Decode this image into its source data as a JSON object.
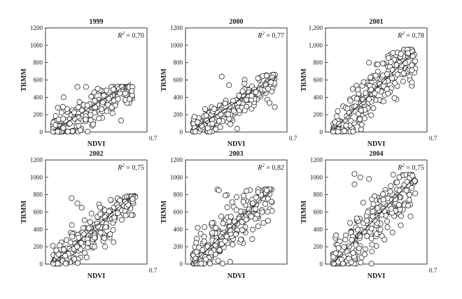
{
  "chart_data": [
    {
      "type": "scatter",
      "title": "1999",
      "xlabel": "NDVI",
      "ylabel": "TRMM",
      "r2_label": "= 0,70",
      "r2_prefix": "R",
      "r2_sup": "2",
      "xlim": [
        0,
        0.7
      ],
      "ylim": [
        0,
        1200
      ],
      "x_tick_labels": [
        "0.7"
      ],
      "y_ticks": [
        0,
        200,
        400,
        600,
        800,
        1000,
        1200
      ],
      "y_tick_labels": [
        "0",
        "200",
        "400",
        "600",
        "800",
        "1000",
        "1200"
      ],
      "grid": false,
      "fit_line": [
        [
          0.05,
          10
        ],
        [
          0.59,
          575
        ]
      ],
      "cloud": {
        "x_min": 0.05,
        "x_max": 0.6,
        "slope": 950,
        "intercept": -30,
        "spread": 95,
        "y_cap": 520,
        "n": 200
      },
      "extra_points": [
        [
          0.22,
          520
        ],
        [
          0.28,
          520
        ],
        [
          0.36,
          500
        ],
        [
          0.42,
          480
        ],
        [
          0.5,
          380
        ],
        [
          0.55,
          370
        ],
        [
          0.58,
          380
        ]
      ]
    },
    {
      "type": "scatter",
      "title": "2000",
      "xlabel": "NDVI",
      "ylabel": "TRMM",
      "r2_label": "= 0,77",
      "r2_prefix": "R",
      "r2_sup": "2",
      "xlim": [
        0,
        0.7
      ],
      "ylim": [
        0,
        1200
      ],
      "x_tick_labels": [
        "0.7"
      ],
      "y_ticks": [
        0,
        200,
        400,
        600,
        800,
        1000,
        1200
      ],
      "y_tick_labels": [
        "0",
        "200",
        "400",
        "600",
        "800",
        "1000",
        "1200"
      ],
      "grid": false,
      "fit_line": [
        [
          0.05,
          20
        ],
        [
          0.62,
          640
        ]
      ],
      "cloud": {
        "x_min": 0.05,
        "x_max": 0.62,
        "slope": 1050,
        "intercept": -40,
        "spread": 90,
        "y_cap": 660,
        "n": 210
      },
      "extra_points": [
        [
          0.25,
          640
        ],
        [
          0.3,
          540
        ],
        [
          0.5,
          620
        ],
        [
          0.56,
          650
        ],
        [
          0.6,
          630
        ]
      ]
    },
    {
      "type": "scatter",
      "title": "2001",
      "xlabel": "NDVI",
      "ylabel": "TRMM",
      "r2_label": "= 0,78",
      "r2_prefix": "R",
      "r2_sup": "2",
      "xlim": [
        0,
        0.7
      ],
      "ylim": [
        0,
        1200
      ],
      "x_tick_labels": [
        "0.7"
      ],
      "y_ticks": [
        0,
        200,
        400,
        600,
        800,
        1000,
        1200
      ],
      "y_tick_labels": [
        "0",
        "200",
        "400",
        "600",
        "800",
        "1,000",
        "1,200"
      ],
      "grid": false,
      "fit_line": [
        [
          0.05,
          20
        ],
        [
          0.62,
          940
        ]
      ],
      "cloud": {
        "x_min": 0.05,
        "x_max": 0.62,
        "slope": 1550,
        "intercept": -60,
        "spread": 140,
        "y_cap": 950,
        "n": 220
      },
      "extra_points": [
        [
          0.3,
          800
        ],
        [
          0.36,
          780
        ],
        [
          0.52,
          900
        ],
        [
          0.57,
          910
        ],
        [
          0.6,
          930
        ]
      ]
    },
    {
      "type": "scatter",
      "title": "2002",
      "xlabel": "NDVI",
      "ylabel": "TRMM",
      "r2_label": "= 0,75",
      "r2_prefix": "R",
      "r2_sup": "2",
      "xlim": [
        0,
        0.7
      ],
      "ylim": [
        0,
        1200
      ],
      "x_tick_labels": [
        "0.7"
      ],
      "y_ticks": [
        0,
        200,
        400,
        600,
        800,
        1000,
        1200
      ],
      "y_tick_labels": [
        "0",
        "200",
        "400",
        "600",
        "800",
        "1000",
        "1200"
      ],
      "grid": false,
      "fit_line": [
        [
          0.05,
          10
        ],
        [
          0.62,
          820
        ]
      ],
      "cloud": {
        "x_min": 0.05,
        "x_max": 0.62,
        "slope": 1300,
        "intercept": -50,
        "spread": 120,
        "y_cap": 780,
        "n": 210
      },
      "extra_points": [
        [
          0.18,
          760
        ],
        [
          0.22,
          700
        ],
        [
          0.25,
          650
        ],
        [
          0.45,
          740
        ],
        [
          0.55,
          720
        ],
        [
          0.6,
          750
        ]
      ]
    },
    {
      "type": "scatter",
      "title": "2003",
      "xlabel": "NDVI",
      "ylabel": "TRMM",
      "r2_label": "= 0,82",
      "r2_prefix": "R",
      "r2_sup": "2",
      "xlim": [
        0,
        0.7
      ],
      "ylim": [
        0,
        1200
      ],
      "x_tick_labels": [],
      "y_ticks": [
        0,
        200,
        400,
        600,
        800,
        1000,
        1200
      ],
      "y_tick_labels": [
        "0",
        "200",
        "400",
        "600",
        "800",
        "1000",
        "1200"
      ],
      "grid": false,
      "fit_line": [
        [
          0.05,
          10
        ],
        [
          0.6,
          870
        ]
      ],
      "cloud": {
        "x_min": 0.05,
        "x_max": 0.6,
        "slope": 1500,
        "intercept": -60,
        "spread": 130,
        "y_cap": 860,
        "n": 220
      },
      "extra_points": [
        [
          0.22,
          860
        ],
        [
          0.23,
          850
        ],
        [
          0.4,
          790
        ],
        [
          0.5,
          830
        ],
        [
          0.56,
          850
        ]
      ]
    },
    {
      "type": "scatter",
      "title": "2004",
      "xlabel": "NDVI",
      "ylabel": "TRMM",
      "r2_label": "= 0,75",
      "r2_prefix": "R",
      "r2_sup": "2",
      "xlim": [
        0,
        0.7
      ],
      "ylim": [
        0,
        1200
      ],
      "x_tick_labels": [
        "0.7"
      ],
      "y_ticks": [
        0,
        200,
        400,
        600,
        800,
        1000,
        1200
      ],
      "y_tick_labels": [
        "0",
        "200",
        "400",
        "600",
        "800",
        "1000",
        "1200"
      ],
      "grid": false,
      "fit_line": [
        [
          0.05,
          10
        ],
        [
          0.62,
          1010
        ]
      ],
      "cloud": {
        "x_min": 0.05,
        "x_max": 0.62,
        "slope": 1650,
        "intercept": -70,
        "spread": 160,
        "y_cap": 1030,
        "n": 230
      },
      "extra_points": [
        [
          0.2,
          1040
        ],
        [
          0.24,
          1000
        ],
        [
          0.2,
          920
        ],
        [
          0.3,
          980
        ],
        [
          0.45,
          900
        ],
        [
          0.6,
          1020
        ]
      ]
    }
  ]
}
